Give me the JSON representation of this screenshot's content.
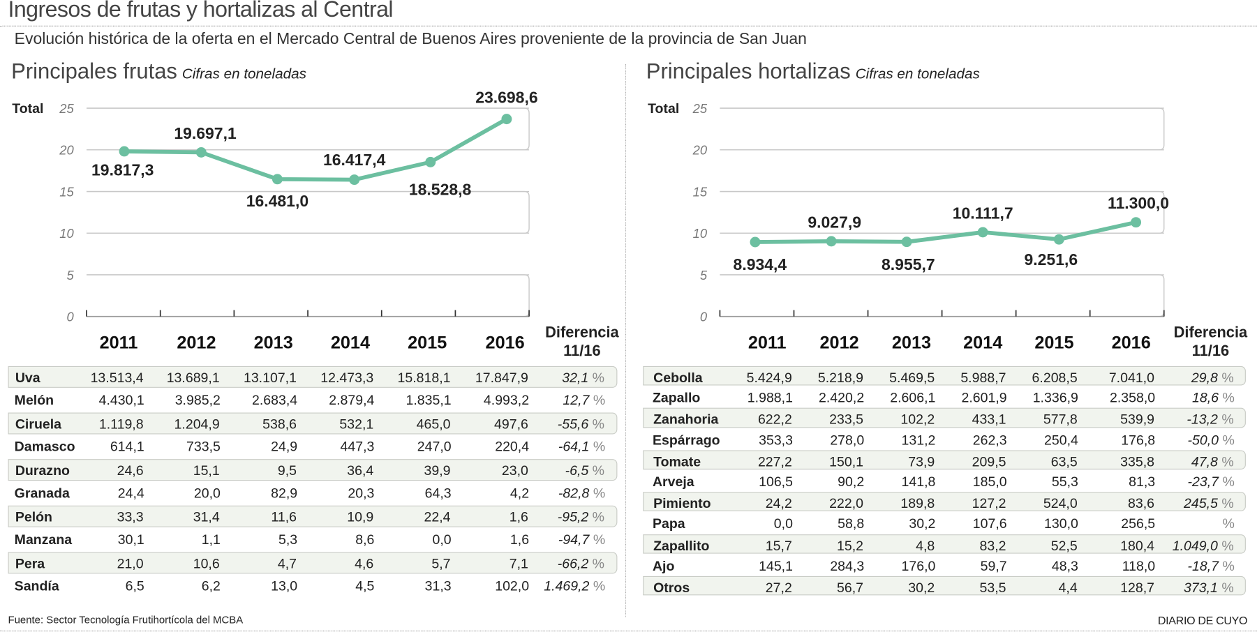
{
  "title": "Ingresos de frutas y hortalizas al Central",
  "subtitle": "Evolución histórica de la oferta en el Mercado Central de Buenos Aires proveniente de la provincia de San Juan",
  "source": "Fuente: Sector Tecnología Frutihortícola del MCBA",
  "brand": "DIARIO DE CUYO",
  "colors": {
    "line": "#6cbfa0",
    "row_bg": "#f1f4ee",
    "grid": "#c8c8c8"
  },
  "chart_data": [
    {
      "type": "line",
      "title": "Principales frutas",
      "subtitle": "Cifras en toneladas",
      "ylabel": "Total",
      "ylim": [
        0,
        25
      ],
      "yticks": [
        "0",
        "5",
        "10",
        "15",
        "20",
        "25"
      ],
      "y_unit": "thousands of tonnes",
      "categories": [
        "2011",
        "2012",
        "2013",
        "2014",
        "2015",
        "2016"
      ],
      "values": [
        19817.3,
        19697.1,
        16481.0,
        16417.4,
        18528.8,
        23698.6
      ],
      "labels": [
        "19.817,3",
        "19.697,1",
        "16.481,0",
        "16.417,4",
        "18.528,8",
        "23.698,6"
      ]
    },
    {
      "type": "line",
      "title": "Principales hortalizas",
      "subtitle": "Cifras en toneladas",
      "ylabel": "Total",
      "ylim": [
        0,
        25
      ],
      "yticks": [
        "0",
        "5",
        "10",
        "15",
        "20",
        "25"
      ],
      "y_unit": "thousands of tonnes",
      "categories": [
        "2011",
        "2012",
        "2013",
        "2014",
        "2015",
        "2016"
      ],
      "values": [
        8934.4,
        9027.9,
        8955.7,
        10111.7,
        9251.6,
        11300.0
      ],
      "labels": [
        "8.934,4",
        "9.027,9",
        "8.955,7",
        "10.111,7",
        "9.251,6",
        "11.300,0"
      ]
    }
  ],
  "diff_header": [
    "Diferencia",
    "11/16"
  ],
  "percent": "%",
  "frutas": [
    [
      "Uva",
      "13.513,4",
      "13.689,1",
      "13.107,1",
      "12.473,3",
      "15.818,1",
      "17.847,9",
      "32,1"
    ],
    [
      "Melón",
      "4.430,1",
      "3.985,2",
      "2.683,4",
      "2.879,4",
      "1.835,1",
      "4.993,2",
      "12,7"
    ],
    [
      "Ciruela",
      "1.119,8",
      "1.204,9",
      "538,6",
      "532,1",
      "465,0",
      "497,6",
      "-55,6"
    ],
    [
      "Damasco",
      "614,1",
      "733,5",
      "24,9",
      "447,3",
      "247,0",
      "220,4",
      "-64,1"
    ],
    [
      "Durazno",
      "24,6",
      "15,1",
      "9,5",
      "36,4",
      "39,9",
      "23,0",
      "-6,5"
    ],
    [
      "Granada",
      "24,4",
      "20,0",
      "82,9",
      "20,3",
      "64,3",
      "4,2",
      "-82,8"
    ],
    [
      "Pelón",
      "33,3",
      "31,4",
      "11,6",
      "10,9",
      "22,4",
      "1,6",
      "-95,2"
    ],
    [
      "Manzana",
      "30,1",
      "1,1",
      "5,3",
      "8,6",
      "0,0",
      "1,6",
      "-94,7"
    ],
    [
      "Pera",
      "21,0",
      "10,6",
      "4,7",
      "4,6",
      "5,7",
      "7,1",
      "-66,2"
    ],
    [
      "Sandía",
      "6,5",
      "6,2",
      "13,0",
      "4,5",
      "31,3",
      "102,0",
      "1.469,2"
    ]
  ],
  "hortalizas": [
    [
      "Cebolla",
      "5.424,9",
      "5.218,9",
      "5.469,5",
      "5.988,7",
      "6.208,5",
      "7.041,0",
      "29,8"
    ],
    [
      "Zapallo",
      "1.988,1",
      "2.420,2",
      "2.606,1",
      "2.601,9",
      "1.336,9",
      "2.358,0",
      "18,6"
    ],
    [
      "Zanahoria",
      "622,2",
      "233,5",
      "102,2",
      "433,1",
      "577,8",
      "539,9",
      "-13,2"
    ],
    [
      "Espárrago",
      "353,3",
      "278,0",
      "131,2",
      "262,3",
      "250,4",
      "176,8",
      "-50,0"
    ],
    [
      "Tomate",
      "227,2",
      "150,1",
      "73,9",
      "209,5",
      "63,5",
      "335,8",
      "47,8"
    ],
    [
      "Arveja",
      "106,5",
      "90,2",
      "141,8",
      "185,0",
      "55,3",
      "81,3",
      "-23,7"
    ],
    [
      "Pimiento",
      "24,2",
      "222,0",
      "189,8",
      "127,2",
      "524,0",
      "83,6",
      "245,5"
    ],
    [
      "Papa",
      "0,0",
      "58,8",
      "30,2",
      "107,6",
      "130,0",
      "256,5",
      ""
    ],
    [
      "Zapallito",
      "15,7",
      "15,2",
      "4,8",
      "83,2",
      "52,5",
      "180,4",
      "1.049,0"
    ],
    [
      "Ajo",
      "145,1",
      "284,3",
      "176,0",
      "59,7",
      "48,3",
      "118,0",
      "-18,7"
    ],
    [
      "Otros",
      "27,2",
      "56,7",
      "30,2",
      "53,5",
      "4,4",
      "128,7",
      "373,1"
    ]
  ]
}
